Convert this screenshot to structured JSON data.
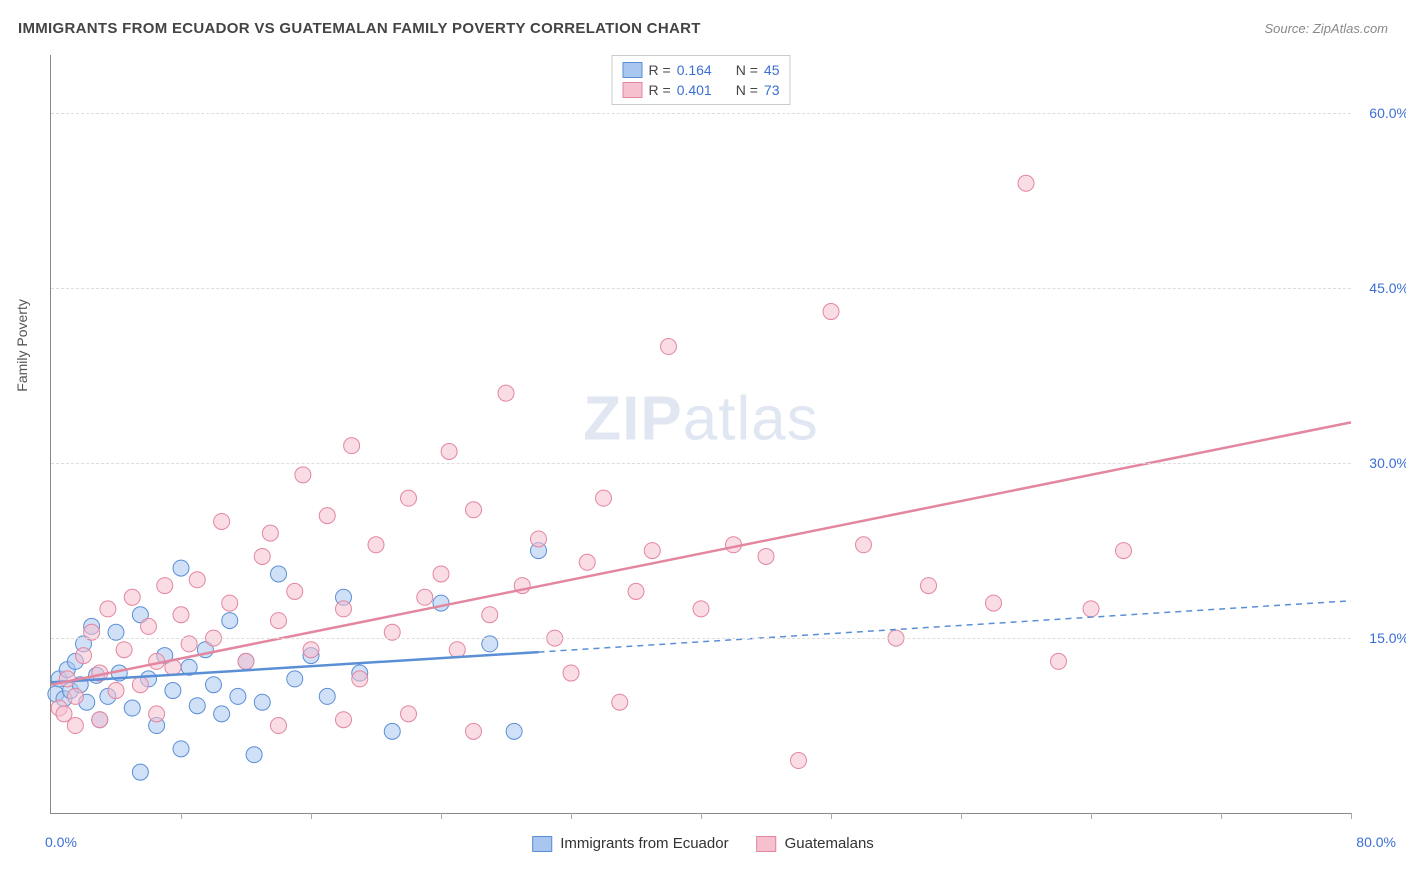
{
  "title": "IMMIGRANTS FROM ECUADOR VS GUATEMALAN FAMILY POVERTY CORRELATION CHART",
  "source": "Source: ZipAtlas.com",
  "watermark": {
    "part1": "ZIP",
    "part2": "atlas"
  },
  "y_axis_title": "Family Poverty",
  "chart": {
    "type": "scatter",
    "xlim": [
      0,
      80
    ],
    "ylim": [
      0,
      65
    ],
    "x_origin_label": "0.0%",
    "x_max_label": "80.0%",
    "y_ticks": [
      {
        "value": 15,
        "label": "15.0%"
      },
      {
        "value": 30,
        "label": "30.0%"
      },
      {
        "value": 45,
        "label": "45.0%"
      },
      {
        "value": 60,
        "label": "60.0%"
      }
    ],
    "x_tick_positions": [
      8,
      16,
      24,
      32,
      40,
      48,
      56,
      64,
      72,
      80
    ],
    "background_color": "#ffffff",
    "grid_color": "#dddddd",
    "axis_color": "#888888",
    "marker_radius": 8,
    "marker_opacity": 0.55,
    "series": [
      {
        "name": "Immigrants from Ecuador",
        "color_fill": "#a9c6f0",
        "color_stroke": "#5a8fd6",
        "r_value": "0.164",
        "n_value": "45",
        "trend": {
          "x1": 0,
          "y1": 11.2,
          "x2": 30,
          "y2": 13.8,
          "extend_x": 80,
          "extend_y": 18.2,
          "width": 2.5,
          "dash_extend": "6,5"
        },
        "points": [
          [
            0.3,
            10.2
          ],
          [
            0.5,
            11.5
          ],
          [
            0.8,
            9.8
          ],
          [
            1.0,
            12.3
          ],
          [
            1.2,
            10.5
          ],
          [
            1.5,
            13.0
          ],
          [
            1.8,
            11.0
          ],
          [
            2.0,
            14.5
          ],
          [
            2.2,
            9.5
          ],
          [
            2.5,
            16.0
          ],
          [
            2.8,
            11.8
          ],
          [
            3.0,
            8.0
          ],
          [
            3.5,
            10.0
          ],
          [
            4.0,
            15.5
          ],
          [
            4.2,
            12.0
          ],
          [
            5.0,
            9.0
          ],
          [
            5.5,
            17.0
          ],
          [
            6.0,
            11.5
          ],
          [
            6.5,
            7.5
          ],
          [
            7.0,
            13.5
          ],
          [
            7.5,
            10.5
          ],
          [
            8.0,
            21.0
          ],
          [
            8.5,
            12.5
          ],
          [
            9.0,
            9.2
          ],
          [
            9.5,
            14.0
          ],
          [
            10.0,
            11.0
          ],
          [
            10.5,
            8.5
          ],
          [
            11.0,
            16.5
          ],
          [
            11.5,
            10.0
          ],
          [
            12.0,
            13.0
          ],
          [
            12.5,
            5.0
          ],
          [
            13.0,
            9.5
          ],
          [
            14.0,
            20.5
          ],
          [
            15.0,
            11.5
          ],
          [
            16.0,
            13.5
          ],
          [
            17.0,
            10.0
          ],
          [
            18.0,
            18.5
          ],
          [
            19.0,
            12.0
          ],
          [
            21.0,
            7.0
          ],
          [
            24.0,
            18.0
          ],
          [
            27.0,
            14.5
          ],
          [
            28.5,
            7.0
          ],
          [
            30.0,
            22.5
          ],
          [
            5.5,
            3.5
          ],
          [
            8.0,
            5.5
          ]
        ]
      },
      {
        "name": "Guatemalans",
        "color_fill": "#f6c0cf",
        "color_stroke": "#e3869f",
        "r_value": "0.401",
        "n_value": "73",
        "trend": {
          "x1": 0,
          "y1": 11.0,
          "x2": 80,
          "y2": 33.5,
          "width": 2.5
        },
        "points": [
          [
            0.5,
            9.0
          ],
          [
            1.0,
            11.5
          ],
          [
            1.5,
            10.0
          ],
          [
            2.0,
            13.5
          ],
          [
            2.5,
            15.5
          ],
          [
            3.0,
            12.0
          ],
          [
            3.5,
            17.5
          ],
          [
            4.0,
            10.5
          ],
          [
            4.5,
            14.0
          ],
          [
            5.0,
            18.5
          ],
          [
            5.5,
            11.0
          ],
          [
            6.0,
            16.0
          ],
          [
            6.5,
            13.0
          ],
          [
            7.0,
            19.5
          ],
          [
            7.5,
            12.5
          ],
          [
            8.0,
            17.0
          ],
          [
            8.5,
            14.5
          ],
          [
            9.0,
            20.0
          ],
          [
            10.0,
            15.0
          ],
          [
            11.0,
            18.0
          ],
          [
            12.0,
            13.0
          ],
          [
            13.0,
            22.0
          ],
          [
            14.0,
            16.5
          ],
          [
            15.0,
            19.0
          ],
          [
            15.5,
            29.0
          ],
          [
            16.0,
            14.0
          ],
          [
            17.0,
            25.5
          ],
          [
            18.0,
            17.5
          ],
          [
            18.5,
            31.5
          ],
          [
            19.0,
            11.5
          ],
          [
            20.0,
            23.0
          ],
          [
            21.0,
            15.5
          ],
          [
            22.0,
            27.0
          ],
          [
            23.0,
            18.5
          ],
          [
            24.0,
            20.5
          ],
          [
            24.5,
            31.0
          ],
          [
            25.0,
            14.0
          ],
          [
            26.0,
            26.0
          ],
          [
            27.0,
            17.0
          ],
          [
            28.0,
            36.0
          ],
          [
            29.0,
            19.5
          ],
          [
            30.0,
            23.5
          ],
          [
            31.0,
            15.0
          ],
          [
            32.0,
            12.0
          ],
          [
            33.0,
            21.5
          ],
          [
            34.0,
            27.0
          ],
          [
            35.0,
            9.5
          ],
          [
            36.0,
            19.0
          ],
          [
            37.0,
            22.5
          ],
          [
            38.0,
            40.0
          ],
          [
            40.0,
            17.5
          ],
          [
            42.0,
            23.0
          ],
          [
            44.0,
            22.0
          ],
          [
            46.0,
            4.5
          ],
          [
            48.0,
            43.0
          ],
          [
            50.0,
            23.0
          ],
          [
            52.0,
            15.0
          ],
          [
            54.0,
            19.5
          ],
          [
            58.0,
            18.0
          ],
          [
            60.0,
            54.0
          ],
          [
            62.0,
            13.0
          ],
          [
            64.0,
            17.5
          ],
          [
            66.0,
            22.5
          ],
          [
            14.0,
            7.5
          ],
          [
            18.0,
            8.0
          ],
          [
            22.0,
            8.5
          ],
          [
            26.0,
            7.0
          ],
          [
            10.5,
            25.0
          ],
          [
            13.5,
            24.0
          ],
          [
            6.5,
            8.5
          ],
          [
            3.0,
            8.0
          ],
          [
            1.5,
            7.5
          ],
          [
            0.8,
            8.5
          ]
        ]
      }
    ]
  },
  "legend_top": {
    "r_label": "R =",
    "n_label": "N ="
  },
  "legend_bottom": {
    "items": [
      "Immigrants from Ecuador",
      "Guatemalans"
    ]
  }
}
